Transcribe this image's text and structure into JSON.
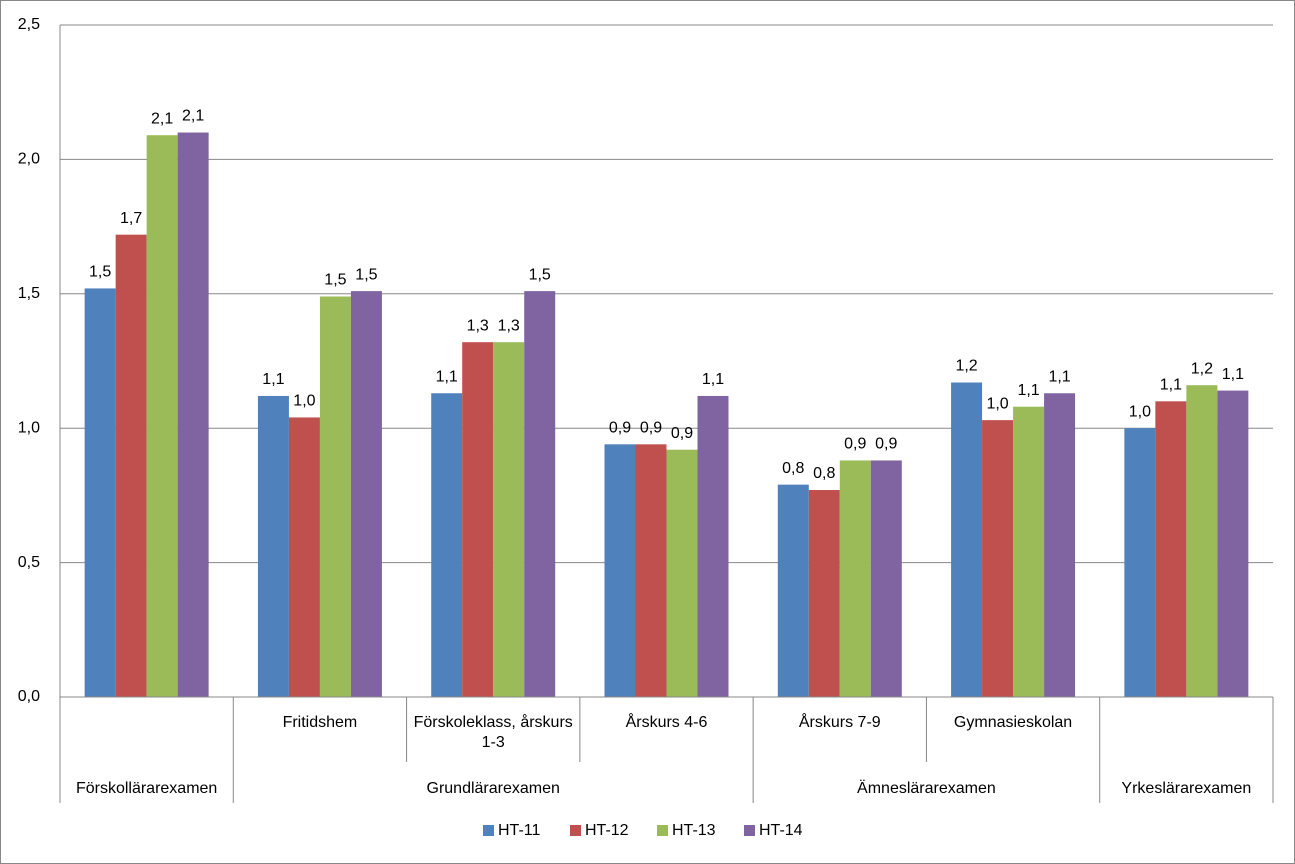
{
  "chart_data": {
    "type": "bar",
    "categories": [
      null,
      "Fritidshem",
      "Förskoleklass, årskurs 1-3",
      "Årskurs 4-6",
      "Årskurs 7-9",
      "Gymnasieskolan",
      null
    ],
    "groups": [
      "Förskollärarexamen",
      "Grundlärarexamen",
      "Grundlärarexamen",
      "Grundlärarexamen",
      "Ämneslärarexamen",
      "Ämneslärarexamen",
      "Yrkeslärarexamen"
    ],
    "series": [
      {
        "name": "HT-11",
        "color": "#4f81bd",
        "values": [
          1.52,
          1.12,
          1.13,
          0.94,
          0.79,
          1.17,
          1.0
        ],
        "value_labels": [
          "1,5",
          "1,1",
          "1,1",
          "0,9",
          "0,8",
          "1,2",
          "1,0"
        ]
      },
      {
        "name": "HT-12",
        "color": "#c0504d",
        "values": [
          1.72,
          1.04,
          1.32,
          0.94,
          0.77,
          1.03,
          1.1
        ],
        "value_labels": [
          "1,7",
          "1,0",
          "1,3",
          "0,9",
          "0,8",
          "1,0",
          "1,1"
        ]
      },
      {
        "name": "HT-13",
        "color": "#9bbb59",
        "values": [
          2.09,
          1.49,
          1.32,
          0.92,
          0.88,
          1.08,
          1.16
        ],
        "value_labels": [
          "2,1",
          "1,5",
          "1,3",
          "0,9",
          "0,9",
          "1,1",
          "1,2"
        ]
      },
      {
        "name": "HT-14",
        "color": "#8064a2",
        "values": [
          2.1,
          1.51,
          1.51,
          1.12,
          0.88,
          1.13,
          1.14
        ],
        "value_labels": [
          "2,1",
          "1,5",
          "1,5",
          "1,1",
          "0,9",
          "1,1",
          "1,1"
        ]
      }
    ],
    "ylim": [
      0,
      2.5
    ],
    "yticks": [
      {
        "value": 0,
        "label": "0,0"
      },
      {
        "value": 0.5,
        "label": "0,5"
      },
      {
        "value": 1,
        "label": "1,0"
      },
      {
        "value": 1.5,
        "label": "1,5"
      },
      {
        "value": 2,
        "label": "2,0"
      },
      {
        "value": 2.5,
        "label": "2,5"
      }
    ],
    "grid": true,
    "legend": "bottom"
  }
}
